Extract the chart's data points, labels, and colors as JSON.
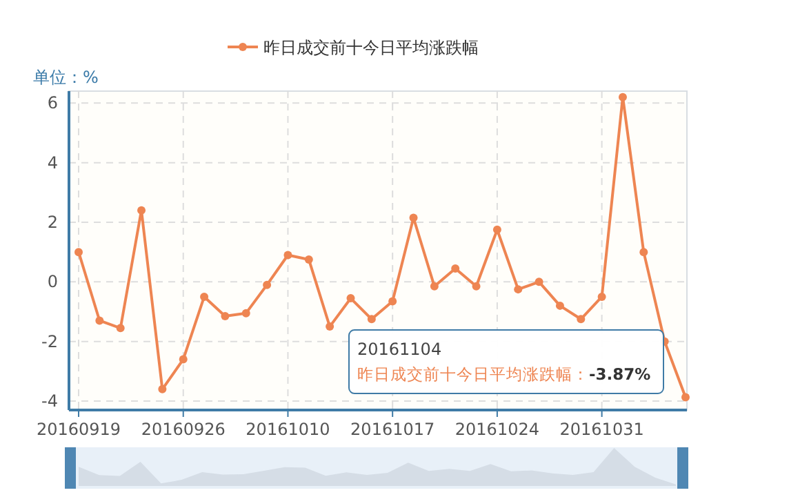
{
  "chart_data": {
    "type": "line",
    "categories": [
      "20160919",
      null,
      null,
      null,
      null,
      "20160926",
      null,
      null,
      null,
      null,
      "20161010",
      null,
      null,
      null,
      null,
      "20161017",
      null,
      null,
      null,
      null,
      "20161024",
      null,
      null,
      null,
      null,
      "20161031",
      null,
      null,
      null,
      null
    ],
    "series": [
      {
        "name": "昨日成交前十今日平均涨跌幅",
        "color": "#ee8552",
        "values": [
          1.0,
          -1.3,
          -1.55,
          2.4,
          -3.6,
          -2.6,
          -0.5,
          -1.15,
          -1.05,
          -0.1,
          0.9,
          0.75,
          -1.5,
          -0.55,
          -1.25,
          -0.65,
          2.15,
          -0.15,
          0.45,
          -0.15,
          1.75,
          -0.25,
          0,
          -0.8,
          -1.25,
          -0.5,
          6.2,
          1.0,
          -2.0,
          -3.87
        ]
      }
    ],
    "ylabel": "单位：%",
    "ylim": [
      -4.3,
      6.4
    ],
    "yticks": [
      -4,
      -2,
      0,
      2,
      4,
      6
    ],
    "grid": true,
    "legend": "top",
    "marker": "circle",
    "line_style": "solid",
    "annotations": [
      "20161104",
      "昨日成交前十今日平均涨跌幅：-3.87%"
    ]
  }
}
